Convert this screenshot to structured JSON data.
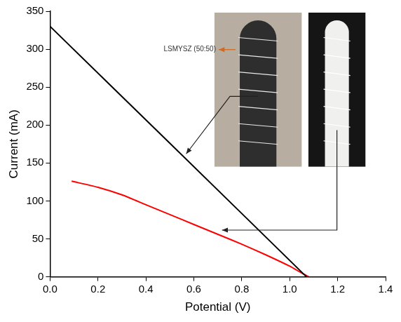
{
  "chart_data": {
    "type": "line",
    "x_label": "Potential (V)",
    "y_label": "Current (mA)",
    "xlim": [
      0,
      1.4
    ],
    "xticks": [
      {
        "value": 0,
        "label": "0.0"
      },
      0.2,
      0.4,
      0.6,
      0.8,
      {
        "value": 1,
        "label": "1.0"
      },
      1.2,
      1.4
    ],
    "ylim": [
      0,
      350
    ],
    "yticks": [
      0,
      50,
      100,
      150,
      200,
      250,
      300,
      350
    ],
    "grid": false,
    "annotation": "LSMYSZ (50:50)",
    "series": [
      {
        "color": "#000000",
        "marker": "none",
        "line_style": "solid",
        "x": [
          0,
          0.5,
          1.07
        ],
        "values": [
          330,
          176,
          0
        ]
      },
      {
        "color": "#ff0000",
        "marker": "none",
        "line_style": "solid",
        "x": [
          0.09,
          0.2,
          0.3,
          0.4,
          0.5,
          0.6,
          0.7,
          0.8,
          0.9,
          1.0,
          1.05,
          1.08
        ],
        "values": [
          126,
          118,
          108,
          95,
          82,
          69,
          56,
          43,
          29,
          14,
          5,
          0
        ]
      }
    ]
  }
}
